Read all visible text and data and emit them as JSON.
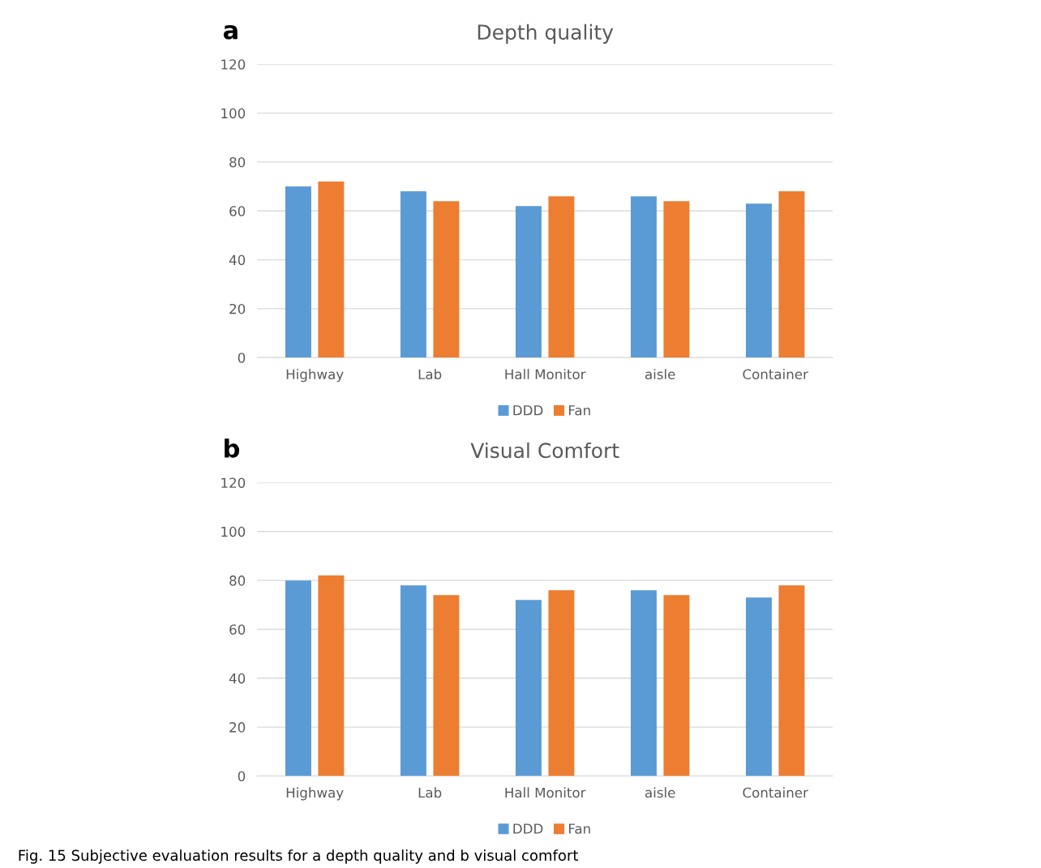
{
  "chart_data": [
    {
      "type": "bar",
      "title": "Depth quality",
      "categories": [
        "Highway",
        "Lab",
        "Hall Monitor",
        "aisle",
        "Container"
      ],
      "series": [
        {
          "name": "DDD",
          "color": "#5b9bd5",
          "values": [
            70,
            68,
            62,
            66,
            63
          ]
        },
        {
          "name": "Fan",
          "color": "#ed7d31",
          "values": [
            72,
            64,
            66,
            64,
            68
          ]
        }
      ],
      "ylim": [
        0,
        120
      ],
      "yticks": [
        0,
        20,
        40,
        60,
        80,
        100,
        120
      ],
      "grid": "y",
      "legend": "bottom",
      "annotations": [
        "a"
      ]
    },
    {
      "type": "bar",
      "title": "Visual Comfort",
      "categories": [
        "Highway",
        "Lab",
        "Hall Monitor",
        "aisle",
        "Container"
      ],
      "series": [
        {
          "name": "DDD",
          "color": "#5b9bd5",
          "values": [
            80,
            78,
            72,
            76,
            73
          ]
        },
        {
          "name": "Fan",
          "color": "#ed7d31",
          "values": [
            82,
            74,
            76,
            74,
            78
          ]
        }
      ],
      "ylim": [
        0,
        120
      ],
      "yticks": [
        0,
        20,
        40,
        60,
        80,
        100,
        120
      ],
      "grid": "y",
      "legend": "bottom",
      "annotations": [
        "b",
        "Fig. 15 Subjective evaluation results for a depth quality and b visual comfort"
      ]
    }
  ]
}
